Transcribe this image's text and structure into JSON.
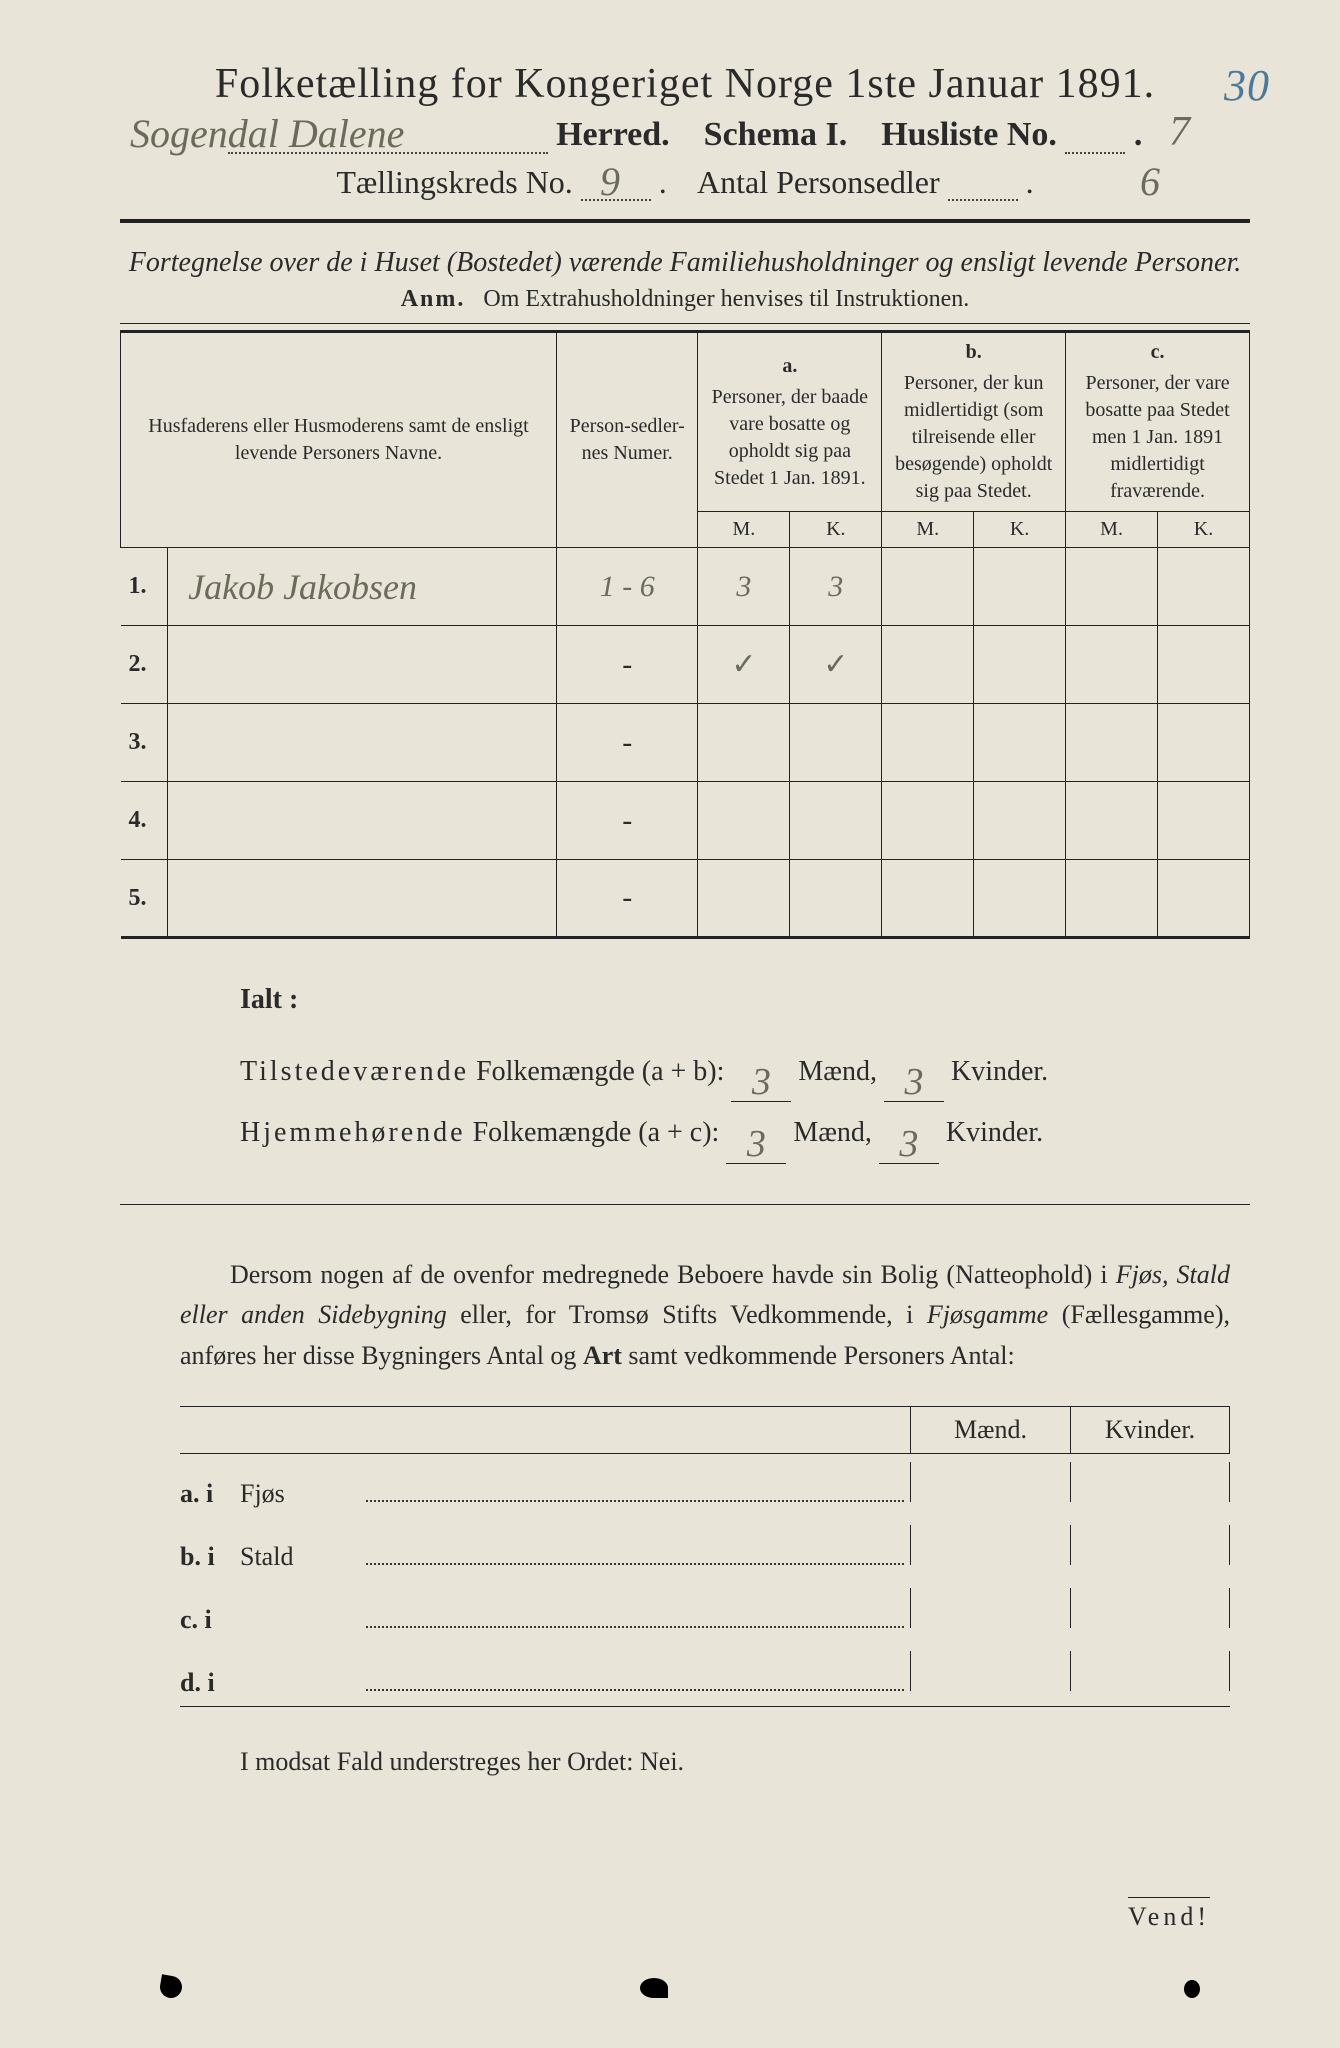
{
  "header": {
    "title": "Folketælling for Kongeriget Norge 1ste Januar 1891.",
    "page_number": "30",
    "herred_value": "Sogendal Dalene",
    "herred_label": "Herred.",
    "schema_label": "Schema I.",
    "husliste_label": "Husliste No.",
    "husliste_value": "7",
    "tkreds_label": "Tællingskreds No.",
    "tkreds_value": "9",
    "antal_label": "Antal Personsedler",
    "antal_value": "6"
  },
  "subtitle": "Fortegnelse over de i Huset (Bostedet) værende Familiehusholdninger og ensligt levende Personer.",
  "anm_label": "Anm.",
  "anm_text": "Om Extrahusholdninger henvises til Instruktionen.",
  "table": {
    "col_names": "Husfaderens eller Husmoderens samt de ensligt levende Personers Navne.",
    "col_numer": "Person-sedler-nes Numer.",
    "col_a_letter": "a.",
    "col_a": "Personer, der baade vare bosatte og opholdt sig paa Stedet 1 Jan. 1891.",
    "col_b_letter": "b.",
    "col_b": "Personer, der kun midlertidigt (som tilreisende eller besøgende) opholdt sig paa Stedet.",
    "col_c_letter": "c.",
    "col_c": "Personer, der vare bosatte paa Stedet men 1 Jan. 1891 midlertidigt fraværende.",
    "m": "M.",
    "k": "K.",
    "rows": [
      {
        "n": "1.",
        "name": "Jakob Jakobsen",
        "numer": "1 - 6",
        "a_m": "3",
        "a_k": "3",
        "b_m": "",
        "b_k": "",
        "c_m": "",
        "c_k": ""
      },
      {
        "n": "2.",
        "name": "",
        "numer": "-",
        "a_m": "✓",
        "a_k": "✓",
        "b_m": "",
        "b_k": "",
        "c_m": "",
        "c_k": ""
      },
      {
        "n": "3.",
        "name": "",
        "numer": "-",
        "a_m": "",
        "a_k": "",
        "b_m": "",
        "b_k": "",
        "c_m": "",
        "c_k": ""
      },
      {
        "n": "4.",
        "name": "",
        "numer": "-",
        "a_m": "",
        "a_k": "",
        "b_m": "",
        "b_k": "",
        "c_m": "",
        "c_k": ""
      },
      {
        "n": "5.",
        "name": "",
        "numer": "-",
        "a_m": "",
        "a_k": "",
        "b_m": "",
        "b_k": "",
        "c_m": "",
        "c_k": ""
      }
    ]
  },
  "ialt": {
    "label": "Ialt :",
    "row1_a": "Tilstedeværende",
    "row1_b": "Folkemængde (a + b):",
    "row2_a": "Hjemmehørende",
    "row2_b": "Folkemængde (a + c):",
    "maend": "Mænd,",
    "kvinder": "Kvinder.",
    "v1m": "3",
    "v1k": "3",
    "v2m": "3",
    "v2k": "3"
  },
  "paragraph": "Dersom nogen af de ovenfor medregnede Beboere havde sin Bolig (Natteophold) i Fjøs, Stald eller anden Sidebygning eller, for Tromsø Stifts Vedkommende, i Fjøsgamme (Fællesgamme), anføres her disse Bygningers Antal og Art samt vedkommende Personers Antal:",
  "outbuildings": {
    "maend": "Mænd.",
    "kvinder": "Kvinder.",
    "rows": [
      {
        "lbl": "a. i",
        "txt": "Fjøs"
      },
      {
        "lbl": "b. i",
        "txt": "Stald"
      },
      {
        "lbl": "c. i",
        "txt": ""
      },
      {
        "lbl": "d. i",
        "txt": ""
      }
    ]
  },
  "nei_line": "I modsat Fald understreges her Ordet: Nei.",
  "vend": "Vend!",
  "colors": {
    "paper": "#e8e5d8",
    "ink": "#2a2a2a",
    "pencil": "#6b6b5a",
    "blue_pencil": "#4a7a9a"
  }
}
